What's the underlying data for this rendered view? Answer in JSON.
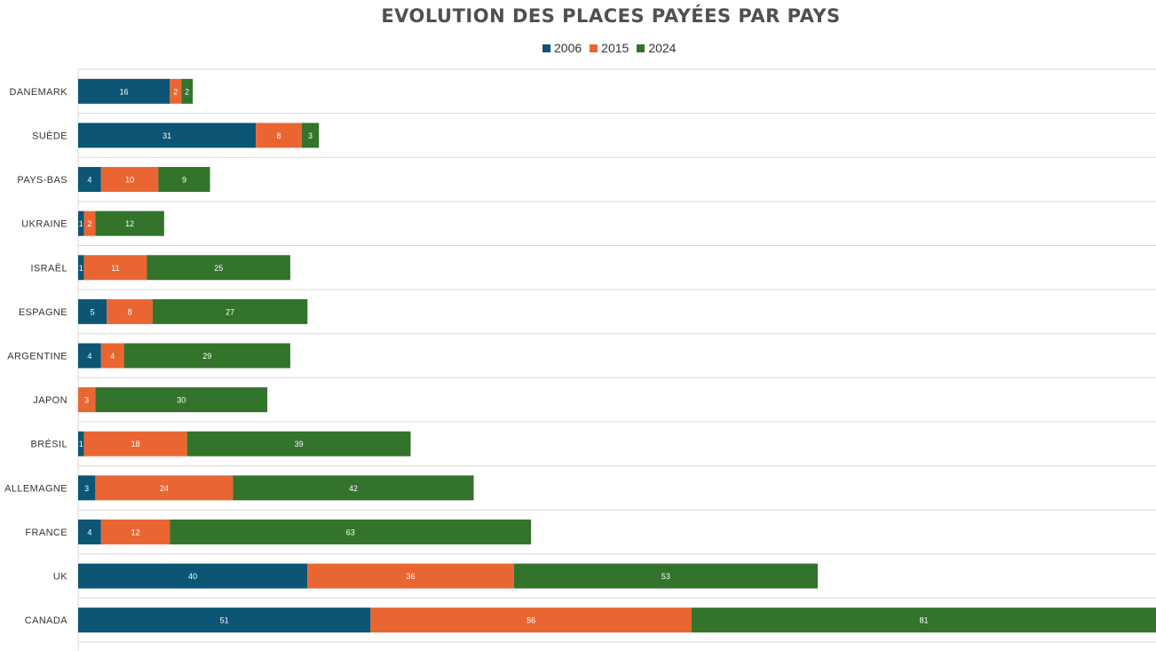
{
  "chart_data": {
    "type": "bar",
    "orientation": "horizontal",
    "stacked": true,
    "title": "EVOLUTION DES PLACES PAYÉES PAR PAYS",
    "categories": [
      "DANEMARK",
      "SUÈDE",
      "PAYS-BAS",
      "UKRAINE",
      "ISRAËL",
      "ESPAGNE",
      "ARGENTINE",
      "JAPON",
      "BRÉSIL",
      "ALLEMAGNE",
      "FRANCE",
      "UK",
      "CANADA"
    ],
    "series": [
      {
        "name": "2006",
        "color": "#0c5574",
        "values": [
          16,
          31,
          4,
          1,
          1,
          5,
          4,
          0,
          1,
          3,
          4,
          40,
          51
        ]
      },
      {
        "name": "2015",
        "color": "#e96633",
        "values": [
          2,
          8,
          10,
          2,
          11,
          8,
          4,
          3,
          18,
          24,
          12,
          36,
          56
        ]
      },
      {
        "name": "2024",
        "color": "#33732b",
        "values": [
          2,
          3,
          9,
          12,
          25,
          27,
          29,
          30,
          39,
          42,
          63,
          53,
          81
        ]
      }
    ],
    "xlim": [
      0,
      188
    ],
    "grid": "horizontal category separators",
    "legend_position": "top-center",
    "data_labels": true,
    "xlabel": "",
    "ylabel": ""
  }
}
